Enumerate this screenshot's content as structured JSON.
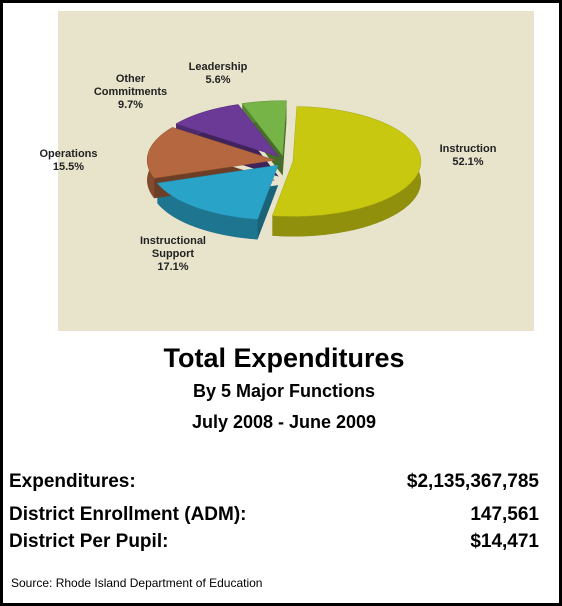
{
  "chart_data": {
    "type": "pie",
    "categories": [
      "Instruction",
      "Instructional Support",
      "Operations",
      "Other Commitments",
      "Leadership"
    ],
    "values": [
      52.1,
      17.1,
      15.5,
      9.7,
      5.6
    ],
    "value_labels": [
      "52.1%",
      "17.1%",
      "15.5%",
      "9.7%",
      "5.6%"
    ],
    "colors": [
      "#c8c810",
      "#2aa3c8",
      "#b5683f",
      "#6b3a97",
      "#76b447"
    ]
  },
  "title": "Total Expenditures",
  "subtitle": "By 5 Major Functions",
  "period": "July 2008 - June 2009",
  "stats": [
    {
      "label": "Expenditures:",
      "value": "$2,135,367,785"
    },
    {
      "label": "District Enrollment (ADM):",
      "value": "147,561"
    },
    {
      "label": "District Per Pupil:",
      "value": "$14,471"
    }
  ],
  "source": "Source: Rhode Island Department of Education"
}
